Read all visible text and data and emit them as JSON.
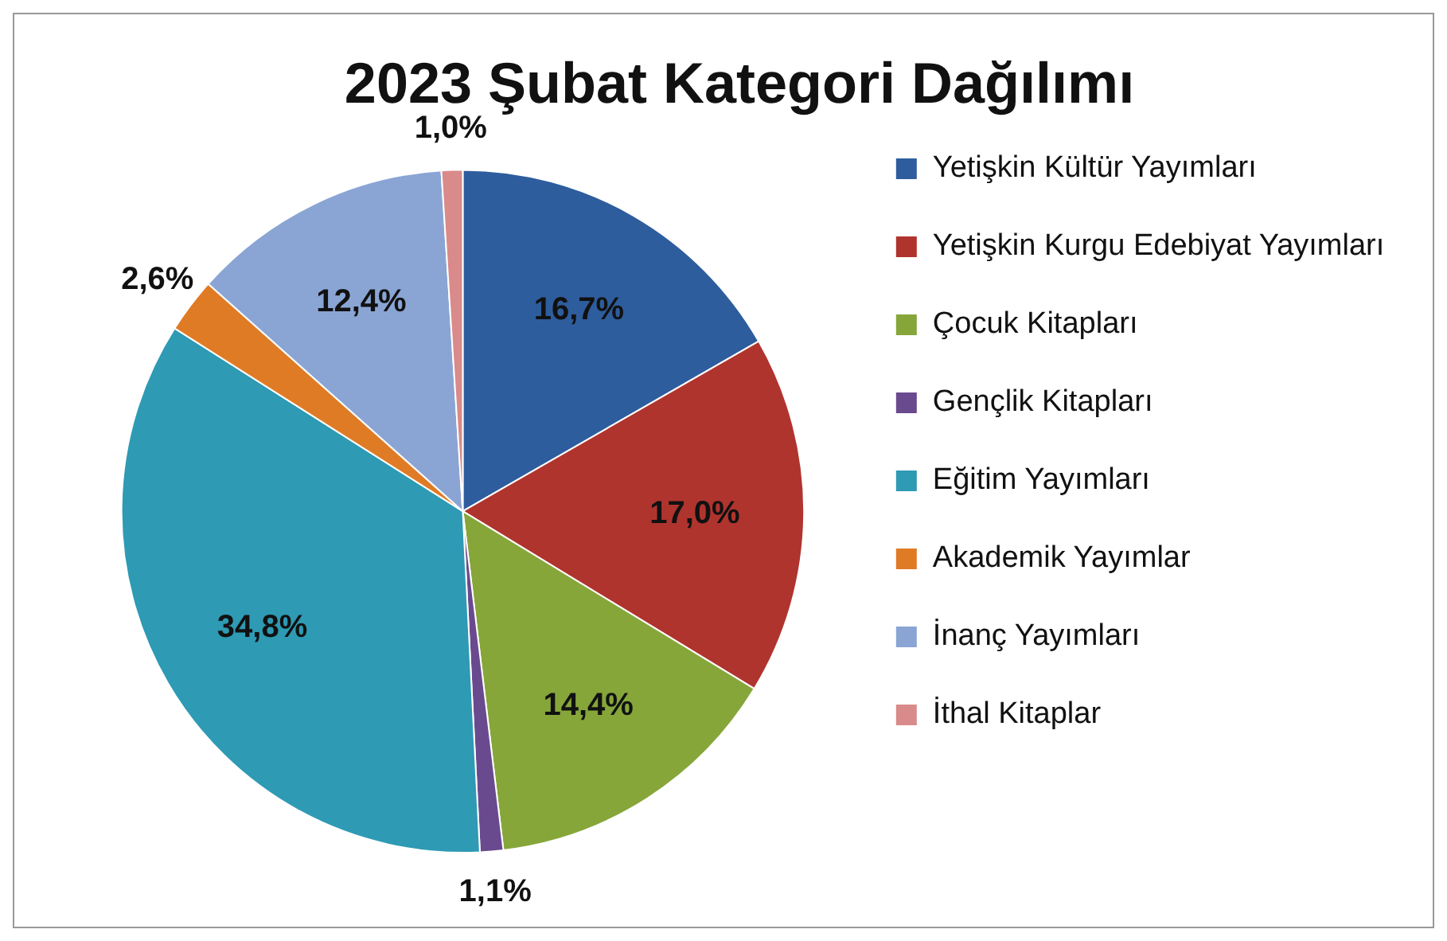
{
  "chart_data": {
    "type": "pie",
    "title": "2023 Şubat Kategori Dağılımı",
    "categories": [
      "Yetişkin Kültür Yayımları",
      "Yetişkin Kurgu Edebiyat Yayımları",
      "Çocuk Kitapları",
      "Gençlik Kitapları",
      "Eğitim Yayımları",
      "Akademik Yayımlar",
      "İnanç Yayımları",
      "İthal Kitaplar"
    ],
    "values": [
      16.7,
      17.0,
      14.4,
      1.1,
      34.8,
      2.6,
      12.4,
      1.0
    ],
    "colors": [
      "#2e5d9e",
      "#b0342e",
      "#86a63a",
      "#6a4a8e",
      "#2e9ab4",
      "#e07b25",
      "#8aa5d4",
      "#d98a8a"
    ],
    "value_labels": [
      "16,7%",
      "17,0%",
      "14,4%",
      "1,1%",
      "34,8%",
      "2,6%",
      "12,4%",
      "1,0%"
    ],
    "legend": "right"
  }
}
